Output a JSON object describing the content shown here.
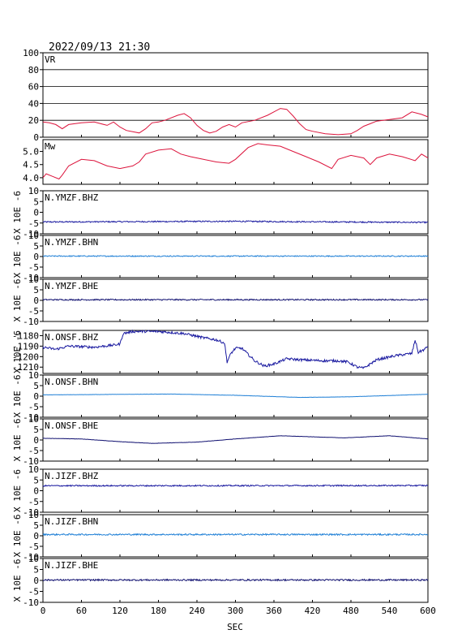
{
  "title": "2022/09/13 21:30",
  "xlabel": "SEC",
  "colors": {
    "vr": "#dc143c",
    "mw": "#dc143c",
    "dark": "#1a1aa0",
    "light": "#1e7fd6",
    "navy": "#101070"
  },
  "chart_data": {
    "type": "line",
    "x_axis": {
      "min": 0,
      "max": 600,
      "ticks": [
        0,
        60,
        120,
        180,
        240,
        300,
        360,
        420,
        480,
        540,
        600
      ],
      "label": "SEC"
    },
    "panels": [
      {
        "id": "vr",
        "label": "VR",
        "ylim": [
          0,
          100
        ],
        "yticks": [
          0,
          20,
          40,
          60,
          80,
          100
        ],
        "grid": true,
        "color": "mw",
        "series": [
          [
            0,
            18
          ],
          [
            10,
            17
          ],
          [
            20,
            15
          ],
          [
            30,
            10
          ],
          [
            40,
            15
          ],
          [
            60,
            17
          ],
          [
            80,
            18
          ],
          [
            100,
            14
          ],
          [
            110,
            18
          ],
          [
            120,
            12
          ],
          [
            130,
            8
          ],
          [
            150,
            5
          ],
          [
            160,
            10
          ],
          [
            170,
            17
          ],
          [
            180,
            18
          ],
          [
            190,
            20
          ],
          [
            210,
            26
          ],
          [
            220,
            28
          ],
          [
            230,
            23
          ],
          [
            240,
            14
          ],
          [
            250,
            8
          ],
          [
            260,
            5
          ],
          [
            270,
            7
          ],
          [
            280,
            12
          ],
          [
            290,
            15
          ],
          [
            300,
            12
          ],
          [
            310,
            17
          ],
          [
            330,
            20
          ],
          [
            350,
            26
          ],
          [
            360,
            30
          ],
          [
            370,
            34
          ],
          [
            380,
            33
          ],
          [
            390,
            25
          ],
          [
            400,
            16
          ],
          [
            410,
            9
          ],
          [
            420,
            7
          ],
          [
            440,
            4
          ],
          [
            460,
            3
          ],
          [
            480,
            4
          ],
          [
            490,
            8
          ],
          [
            500,
            13
          ],
          [
            510,
            16
          ],
          [
            520,
            19
          ],
          [
            540,
            21
          ],
          [
            560,
            23
          ],
          [
            575,
            30
          ],
          [
            590,
            27
          ],
          [
            600,
            24
          ]
        ]
      },
      {
        "id": "mw",
        "label": "Mw",
        "ylim": [
          3.75,
          5.45
        ],
        "yticks": [
          4.0,
          4.5,
          5.0
        ],
        "ytick_labels": [
          "4.0",
          "4.5",
          "5.0"
        ],
        "grid": false,
        "color": "mw",
        "series": [
          [
            0,
            4.0
          ],
          [
            5,
            4.15
          ],
          [
            15,
            4.05
          ],
          [
            25,
            3.95
          ],
          [
            30,
            4.1
          ],
          [
            40,
            4.45
          ],
          [
            60,
            4.7
          ],
          [
            80,
            4.65
          ],
          [
            100,
            4.45
          ],
          [
            120,
            4.35
          ],
          [
            140,
            4.45
          ],
          [
            150,
            4.6
          ],
          [
            160,
            4.9
          ],
          [
            180,
            5.05
          ],
          [
            200,
            5.1
          ],
          [
            215,
            4.9
          ],
          [
            230,
            4.8
          ],
          [
            250,
            4.7
          ],
          [
            270,
            4.6
          ],
          [
            290,
            4.55
          ],
          [
            300,
            4.7
          ],
          [
            320,
            5.15
          ],
          [
            335,
            5.3
          ],
          [
            350,
            5.25
          ],
          [
            370,
            5.2
          ],
          [
            390,
            5.0
          ],
          [
            410,
            4.8
          ],
          [
            430,
            4.6
          ],
          [
            450,
            4.35
          ],
          [
            460,
            4.7
          ],
          [
            480,
            4.85
          ],
          [
            500,
            4.75
          ],
          [
            510,
            4.5
          ],
          [
            520,
            4.75
          ],
          [
            540,
            4.9
          ],
          [
            560,
            4.8
          ],
          [
            580,
            4.65
          ],
          [
            590,
            4.9
          ],
          [
            600,
            4.75
          ]
        ]
      },
      {
        "id": "ymzf_bhz",
        "label": "N.YMZF.BHZ",
        "ylabel": "X 10E -6",
        "ylim": [
          -10,
          10
        ],
        "yticks": [
          -10,
          -5,
          0,
          5,
          10
        ],
        "color": "dark",
        "noise": 0.3,
        "series": [
          [
            0,
            -4.5
          ],
          [
            300,
            -4.2
          ],
          [
            400,
            -4.4
          ],
          [
            600,
            -4.7
          ]
        ]
      },
      {
        "id": "ymzf_bhn",
        "label": "N.YMZF.BHN",
        "ylabel": "X 10E -6",
        "ylim": [
          -10,
          10
        ],
        "yticks": [
          -10,
          -5,
          0,
          5,
          10
        ],
        "color": "light",
        "noise": 0.25,
        "series": [
          [
            0,
            0.2
          ],
          [
            600,
            0.2
          ]
        ]
      },
      {
        "id": "ymzf_bhe",
        "label": "N.YMZF.BHE",
        "ylabel": "X 10E -6",
        "ylim": [
          -10,
          10
        ],
        "yticks": [
          -10,
          -5,
          0,
          5,
          10
        ],
        "color": "navy",
        "noise": 0.3,
        "series": [
          [
            0,
            0.3
          ],
          [
            600,
            0.3
          ]
        ]
      },
      {
        "id": "onsf_bhz",
        "label": "N.ONSF.BHZ",
        "ylabel": "X 10E -6",
        "ylim": [
          -1216,
          -1175
        ],
        "yticks": [
          -1180,
          -1190,
          -1200,
          -1210
        ],
        "ytick_labels": [
          "-1180",
          "-1190",
          "-1200",
          "-1210"
        ],
        "color": "dark",
        "noise": 1.2,
        "series": [
          [
            0,
            -1191
          ],
          [
            20,
            -1193
          ],
          [
            40,
            -1190
          ],
          [
            80,
            -1191
          ],
          [
            110,
            -1189
          ],
          [
            120,
            -1188
          ],
          [
            125,
            -1178
          ],
          [
            140,
            -1176
          ],
          [
            180,
            -1176
          ],
          [
            220,
            -1178
          ],
          [
            250,
            -1182
          ],
          [
            270,
            -1184
          ],
          [
            283,
            -1187
          ],
          [
            287,
            -1205
          ],
          [
            293,
            -1197
          ],
          [
            300,
            -1192
          ],
          [
            310,
            -1192
          ],
          [
            330,
            -1204
          ],
          [
            345,
            -1209
          ],
          [
            360,
            -1207
          ],
          [
            380,
            -1202
          ],
          [
            400,
            -1203
          ],
          [
            440,
            -1204
          ],
          [
            460,
            -1204
          ],
          [
            475,
            -1205
          ],
          [
            490,
            -1210
          ],
          [
            500,
            -1211
          ],
          [
            520,
            -1203
          ],
          [
            550,
            -1199
          ],
          [
            575,
            -1197
          ],
          [
            580,
            -1184
          ],
          [
            585,
            -1196
          ],
          [
            595,
            -1193
          ],
          [
            600,
            -1190
          ]
        ]
      },
      {
        "id": "onsf_bhn",
        "label": "N.ONSF.BHN",
        "ylabel": "X 10E -6",
        "ylim": [
          -10,
          10
        ],
        "yticks": [
          -10,
          -5,
          0,
          5,
          10
        ],
        "color": "light",
        "noise": 0.05,
        "series": [
          [
            0,
            0.6
          ],
          [
            100,
            0.8
          ],
          [
            200,
            1.0
          ],
          [
            300,
            0.4
          ],
          [
            400,
            -0.6
          ],
          [
            480,
            -0.3
          ],
          [
            600,
            0.9
          ]
        ]
      },
      {
        "id": "onsf_bhe",
        "label": "N.ONSF.BHE",
        "ylabel": "X 10E -6",
        "ylim": [
          -10,
          10
        ],
        "yticks": [
          -10,
          -5,
          0,
          5,
          10
        ],
        "color": "navy",
        "noise": 0.05,
        "series": [
          [
            0,
            0.8
          ],
          [
            60,
            0.5
          ],
          [
            120,
            -0.8
          ],
          [
            170,
            -1.6
          ],
          [
            240,
            -1.0
          ],
          [
            300,
            0.5
          ],
          [
            370,
            2.0
          ],
          [
            420,
            1.5
          ],
          [
            470,
            1.0
          ],
          [
            540,
            2.0
          ],
          [
            600,
            0.5
          ]
        ]
      },
      {
        "id": "jizf_bhz",
        "label": "N.JIZF.BHZ",
        "ylabel": "X 10E -6",
        "ylim": [
          -10,
          10
        ],
        "yticks": [
          -10,
          -5,
          0,
          5,
          10
        ],
        "color": "dark",
        "noise": 0.3,
        "series": [
          [
            0,
            2.3
          ],
          [
            600,
            2.4
          ]
        ]
      },
      {
        "id": "jizf_bhn",
        "label": "N.JIZF.BHN",
        "ylabel": "X 10E -6",
        "ylim": [
          -10,
          10
        ],
        "yticks": [
          -10,
          -5,
          0,
          5,
          10
        ],
        "color": "light",
        "noise": 0.35,
        "series": [
          [
            0,
            0.6
          ],
          [
            600,
            0.6
          ]
        ]
      },
      {
        "id": "jizf_bhe",
        "label": "N.JIZF.BHE",
        "ylabel": "X 10E -6",
        "ylim": [
          -10,
          10
        ],
        "yticks": [
          -10,
          -5,
          0,
          5,
          10
        ],
        "color": "navy",
        "noise": 0.35,
        "series": [
          [
            0,
            0.2
          ],
          [
            600,
            0.2
          ]
        ]
      }
    ]
  }
}
